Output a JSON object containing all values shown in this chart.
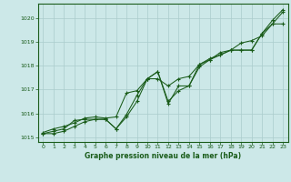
{
  "background_color": "#cce8e8",
  "grid_color": "#aacccc",
  "line_color": "#1a5c1a",
  "marker_color": "#1a5c1a",
  "xlabel": "Graphe pression niveau de la mer (hPa)",
  "xlabel_color": "#1a5c1a",
  "xlim": [
    -0.5,
    23.5
  ],
  "ylim": [
    1014.8,
    1020.6
  ],
  "yticks": [
    1015,
    1016,
    1017,
    1018,
    1019,
    1020
  ],
  "xticks": [
    0,
    1,
    2,
    3,
    4,
    5,
    6,
    7,
    8,
    9,
    10,
    11,
    12,
    13,
    14,
    15,
    16,
    17,
    18,
    19,
    20,
    21,
    22,
    23
  ],
  "series1_x": [
    0,
    1,
    2,
    3,
    4,
    5,
    6,
    7,
    8,
    9,
    10,
    11,
    12,
    13,
    14,
    15,
    16,
    17,
    18,
    19,
    20,
    21,
    22,
    23
  ],
  "series1_y": [
    1015.2,
    1015.35,
    1015.45,
    1015.6,
    1015.8,
    1015.85,
    1015.8,
    1015.85,
    1016.85,
    1016.95,
    1017.45,
    1017.45,
    1017.15,
    1017.45,
    1017.55,
    1018.05,
    1018.25,
    1018.55,
    1018.65,
    1018.95,
    1019.05,
    1019.25,
    1019.75,
    1020.25
  ],
  "series2_x": [
    0,
    1,
    2,
    3,
    4,
    5,
    6,
    7,
    8,
    9,
    10,
    11,
    12,
    13,
    14,
    15,
    16,
    17,
    18,
    19,
    20,
    21,
    22,
    23
  ],
  "series2_y": [
    1015.15,
    1015.25,
    1015.35,
    1015.7,
    1015.75,
    1015.75,
    1015.75,
    1015.35,
    1015.95,
    1016.75,
    1017.45,
    1017.75,
    1016.5,
    1016.95,
    1017.15,
    1017.95,
    1018.25,
    1018.45,
    1018.65,
    1018.65,
    1018.65,
    1019.35,
    1019.75,
    1019.75
  ],
  "series3_x": [
    0,
    1,
    2,
    3,
    4,
    5,
    6,
    7,
    8,
    9,
    10,
    11,
    12,
    13,
    14,
    15,
    16,
    17,
    18,
    19,
    20,
    21,
    22,
    23
  ],
  "series3_y": [
    1015.15,
    1015.15,
    1015.25,
    1015.45,
    1015.65,
    1015.75,
    1015.75,
    1015.35,
    1015.85,
    1016.5,
    1017.45,
    1017.75,
    1016.4,
    1017.15,
    1017.15,
    1018.05,
    1018.3,
    1018.45,
    1018.65,
    1018.65,
    1018.65,
    1019.35,
    1019.9,
    1020.35
  ]
}
